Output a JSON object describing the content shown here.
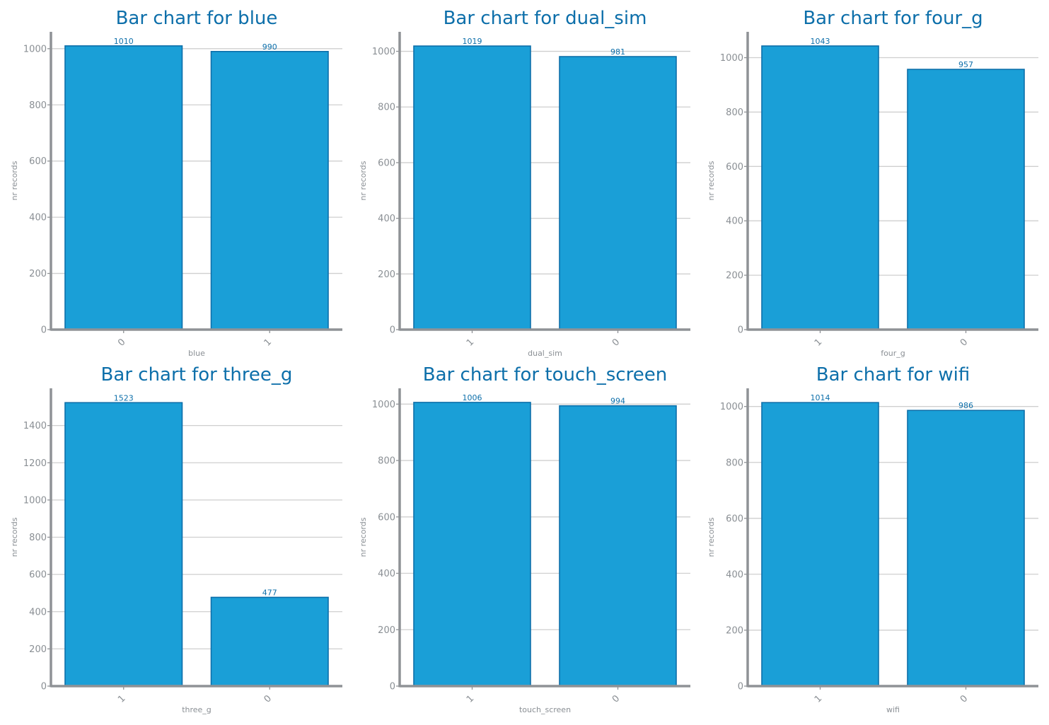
{
  "colors": {
    "accent": "#1a9fd7",
    "edge": "#0d6faa",
    "title": "#0d6faa",
    "axis": "#8f9296",
    "grid": "#cfcfcf",
    "tick_text": "#8a8f94"
  },
  "chart_data": [
    {
      "type": "bar",
      "title": "Bar chart for blue",
      "xlabel": "blue",
      "ylabel": "nr records",
      "categories": [
        "0",
        "1"
      ],
      "values": [
        1010,
        990
      ],
      "ylim": [
        0,
        1060
      ],
      "yticks": [
        0,
        200,
        400,
        600,
        800,
        1000
      ],
      "grid": "horizontal"
    },
    {
      "type": "bar",
      "title": "Bar chart for dual_sim",
      "xlabel": "dual_sim",
      "ylabel": "nr records",
      "categories": [
        "1",
        "0"
      ],
      "values": [
        1019,
        981
      ],
      "ylim": [
        0,
        1070
      ],
      "yticks": [
        0,
        200,
        400,
        600,
        800,
        1000
      ],
      "grid": "horizontal"
    },
    {
      "type": "bar",
      "title": "Bar chart for four_g",
      "xlabel": "four_g",
      "ylabel": "nr records",
      "categories": [
        "1",
        "0"
      ],
      "values": [
        1043,
        957
      ],
      "ylim": [
        0,
        1095
      ],
      "yticks": [
        0,
        200,
        400,
        600,
        800,
        1000
      ],
      "grid": "horizontal"
    },
    {
      "type": "bar",
      "title": "Bar chart for three_g",
      "xlabel": "three_g",
      "ylabel": "nr records",
      "categories": [
        "1",
        "0"
      ],
      "values": [
        1523,
        477
      ],
      "ylim": [
        0,
        1600
      ],
      "yticks": [
        0,
        200,
        400,
        600,
        800,
        1000,
        1200,
        1400
      ],
      "grid": "horizontal"
    },
    {
      "type": "bar",
      "title": "Bar chart for touch_screen",
      "xlabel": "touch_screen",
      "ylabel": "nr records",
      "categories": [
        "1",
        "0"
      ],
      "values": [
        1006,
        994
      ],
      "ylim": [
        0,
        1056
      ],
      "yticks": [
        0,
        200,
        400,
        600,
        800,
        1000
      ],
      "grid": "horizontal"
    },
    {
      "type": "bar",
      "title": "Bar chart for wifi",
      "xlabel": "wifi",
      "ylabel": "nr records",
      "categories": [
        "1",
        "0"
      ],
      "values": [
        1014,
        986
      ],
      "ylim": [
        0,
        1065
      ],
      "yticks": [
        0,
        200,
        400,
        600,
        800,
        1000
      ],
      "grid": "horizontal"
    }
  ]
}
